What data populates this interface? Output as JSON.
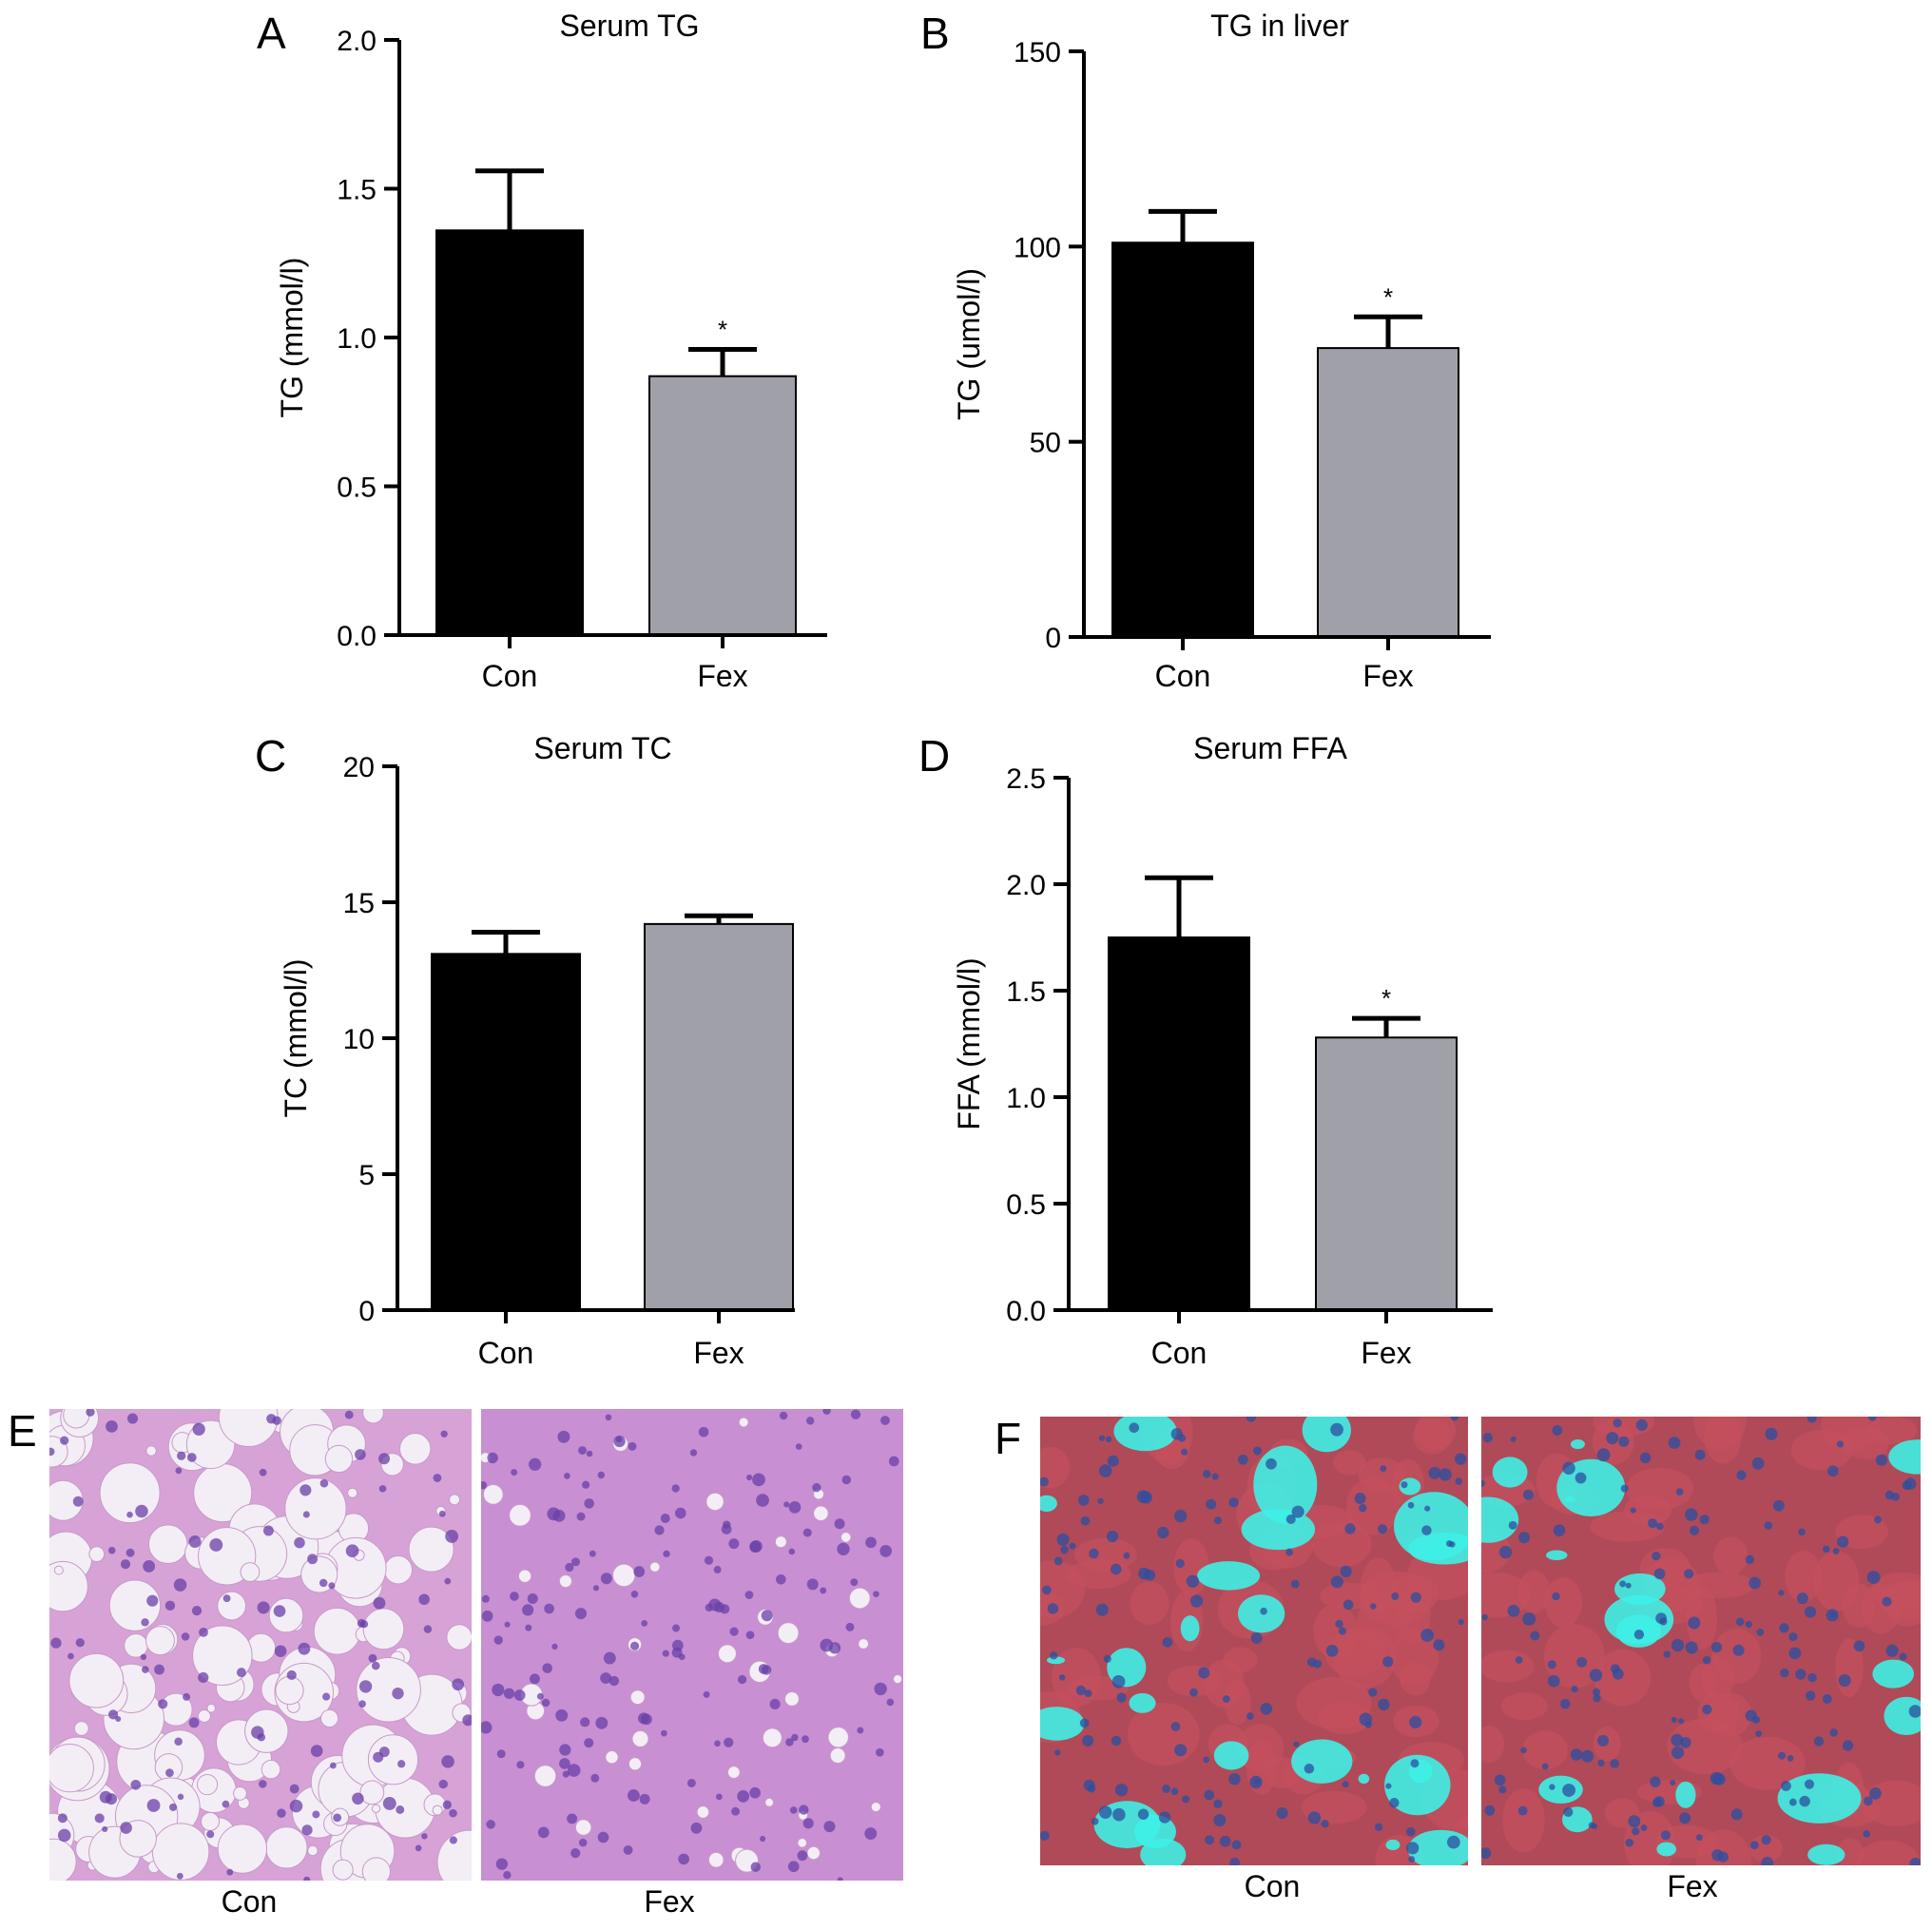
{
  "panels": {
    "A": "A",
    "B": "B",
    "C": "C",
    "D": "D",
    "E": "E",
    "F": "F"
  },
  "chart_data": [
    {
      "type": "bar",
      "title": "Serum TG",
      "ylabel": "TG (mmol/l)",
      "categories": [
        "Con",
        "Fex"
      ],
      "values": [
        1.36,
        0.87
      ],
      "errors": [
        0.2,
        0.09
      ],
      "significance": [
        "",
        "*"
      ],
      "ylim": [
        0,
        2.0
      ],
      "yticks": [
        0.0,
        0.5,
        1.0,
        1.5,
        2.0
      ],
      "ytick_labels": [
        "0.0",
        "0.5",
        "1.0",
        "1.5",
        "2.0"
      ],
      "colors": [
        "#000000",
        "#a0a0a8"
      ]
    },
    {
      "type": "bar",
      "title": "TG in liver",
      "ylabel": "TG (umol/l)",
      "categories": [
        "Con",
        "Fex"
      ],
      "values": [
        101,
        74
      ],
      "errors": [
        8,
        8
      ],
      "significance": [
        "",
        "*"
      ],
      "ylim": [
        0,
        150
      ],
      "yticks": [
        0,
        50,
        100,
        150
      ],
      "ytick_labels": [
        "0",
        "50",
        "100",
        "150"
      ],
      "colors": [
        "#000000",
        "#a0a0a8"
      ]
    },
    {
      "type": "bar",
      "title": "Serum TC",
      "ylabel": "TC (mmol/l)",
      "categories": [
        "Con",
        "Fex"
      ],
      "values": [
        13.1,
        14.2
      ],
      "errors": [
        0.8,
        0.3
      ],
      "significance": [
        "",
        ""
      ],
      "ylim": [
        0,
        20
      ],
      "yticks": [
        0,
        5,
        10,
        15,
        20
      ],
      "ytick_labels": [
        "0",
        "5",
        "10",
        "15",
        "20"
      ],
      "colors": [
        "#000000",
        "#a0a0a8"
      ]
    },
    {
      "type": "bar",
      "title": "Serum FFA",
      "ylabel": "FFA (mmol/l)",
      "categories": [
        "Con",
        "Fex"
      ],
      "values": [
        1.75,
        1.28
      ],
      "errors": [
        0.28,
        0.09
      ],
      "significance": [
        "",
        "*"
      ],
      "ylim": [
        0,
        2.5
      ],
      "yticks": [
        0.0,
        0.5,
        1.0,
        1.5,
        2.0,
        2.5
      ],
      "ytick_labels": [
        "0.0",
        "0.5",
        "1.0",
        "1.5",
        "2.0",
        "2.5"
      ],
      "colors": [
        "#000000",
        "#a0a0a8"
      ]
    }
  ],
  "micrographs": {
    "E": {
      "labels": [
        "Con",
        "Fex"
      ],
      "stain_colors": [
        "#d7a3d6",
        "#c88fd2"
      ],
      "droplet_color": "#f3eef5",
      "nucleus_color": "#6a3fa8"
    },
    "F": {
      "labels": [
        "Con",
        "Fex"
      ],
      "stain_colors": [
        "#b04a58",
        "#b04a58"
      ],
      "droplet_color": "#3ef0e6",
      "nucleus_color": "#2b4fa0"
    }
  }
}
